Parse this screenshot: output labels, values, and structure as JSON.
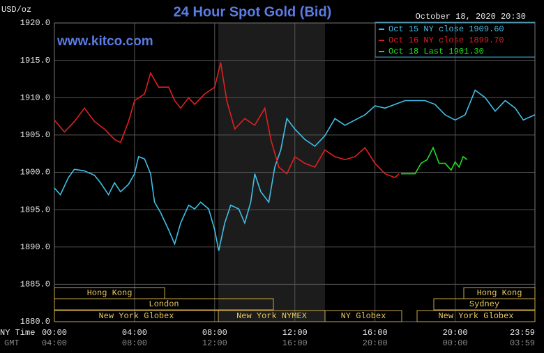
{
  "chart_data": {
    "type": "line",
    "title": "24 Hour Spot Gold (Bid)",
    "y_label": "USD/oz",
    "date_stamp": "October 18, 2020 20:30",
    "watermark": "www.kitco.com",
    "x_axis_label": "NY Time",
    "x2_axis_label": "GMT",
    "xlim": [
      0,
      23.983
    ],
    "xticks": [
      {
        "value": 0,
        "label": "00:00"
      },
      {
        "value": 4,
        "label": "04:00"
      },
      {
        "value": 8,
        "label": "08:00"
      },
      {
        "value": 12,
        "label": "12:00"
      },
      {
        "value": 16,
        "label": "16:00"
      },
      {
        "value": 20,
        "label": "20:00"
      },
      {
        "value": 23.983,
        "label": "23:59"
      }
    ],
    "x2ticks": [
      {
        "value": 0,
        "label": "04:00"
      },
      {
        "value": 4,
        "label": "08:00"
      },
      {
        "value": 8,
        "label": "12:00"
      },
      {
        "value": 12,
        "label": "16:00"
      },
      {
        "value": 16,
        "label": "20:00"
      },
      {
        "value": 20,
        "label": "00:00"
      },
      {
        "value": 23.983,
        "label": "03:59"
      }
    ],
    "ylim": [
      1880,
      1920
    ],
    "yticks": [
      {
        "value": 1880,
        "label": "1880.0"
      },
      {
        "value": 1885,
        "label": "1885.0"
      },
      {
        "value": 1890,
        "label": "1890.0"
      },
      {
        "value": 1895,
        "label": "1895.0"
      },
      {
        "value": 1900,
        "label": "1900.0"
      },
      {
        "value": 1905,
        "label": "1905.0"
      },
      {
        "value": 1910,
        "label": "1910.0"
      },
      {
        "value": 1915,
        "label": "1915.0"
      },
      {
        "value": 1920,
        "label": "1920.0"
      }
    ],
    "grid": true,
    "sessions": [
      "Hong Kong",
      "London",
      "New York Globex",
      "New York NYMEX",
      "NY Globex",
      "Hong Kong",
      "Sydney",
      "New York Globex"
    ],
    "series": [
      {
        "name": "Oct 15 NY close 1909.60",
        "color": "#40c0e8",
        "x": [
          0,
          0.3,
          0.7,
          1,
          1.5,
          2,
          2.3,
          2.7,
          3,
          3.3,
          3.7,
          4,
          4.2,
          4.5,
          4.8,
          5,
          5.3,
          5.7,
          6,
          6.3,
          6.7,
          7,
          7.3,
          7.7,
          8,
          8.2,
          8.5,
          8.8,
          9.2,
          9.5,
          9.8,
          10,
          10.3,
          10.7,
          11,
          11.3,
          11.6,
          12,
          12.5,
          13,
          13.5,
          14,
          14.5,
          15,
          15.5,
          16,
          16.5,
          17,
          17.5,
          18,
          18.5,
          19,
          19.5,
          20,
          20.5,
          21,
          21.5,
          22,
          22.5,
          23,
          23.4,
          23.98
        ],
        "values": [
          1897.9,
          1897.0,
          1899.3,
          1900.4,
          1900.2,
          1899.6,
          1898.6,
          1897.0,
          1898.6,
          1897.4,
          1898.4,
          1899.8,
          1902.1,
          1901.8,
          1899.8,
          1896.0,
          1894.6,
          1892.3,
          1890.4,
          1893.2,
          1895.6,
          1895.1,
          1896.0,
          1895.1,
          1892.3,
          1889.5,
          1893.2,
          1895.6,
          1895.1,
          1893.2,
          1896.0,
          1899.8,
          1897.4,
          1896.0,
          1900.7,
          1903.0,
          1907.2,
          1905.8,
          1904.4,
          1903.5,
          1904.9,
          1907.2,
          1906.3,
          1907.0,
          1907.7,
          1908.9,
          1908.6,
          1909.1,
          1909.6,
          1909.6,
          1909.6,
          1909.1,
          1907.7,
          1907.0,
          1907.7,
          1911.0,
          1910.0,
          1908.2,
          1909.6,
          1908.6,
          1907.0,
          1907.7
        ]
      },
      {
        "name": "Oct 16 NY close 1899.70",
        "color": "#e02020",
        "x": [
          0,
          0.5,
          1,
          1.5,
          2,
          2.5,
          3,
          3.3,
          3.7,
          4,
          4.5,
          4.8,
          5.2,
          5.7,
          6,
          6.3,
          6.7,
          7,
          7.5,
          8,
          8.3,
          8.6,
          9,
          9.5,
          10,
          10.5,
          10.8,
          11.2,
          11.6,
          12,
          12.5,
          13,
          13.5,
          14,
          14.5,
          15,
          15.5,
          16,
          16.5,
          17,
          17.2
        ],
        "values": [
          1907.0,
          1905.4,
          1906.8,
          1908.6,
          1906.8,
          1905.8,
          1904.4,
          1904.0,
          1906.8,
          1909.6,
          1910.5,
          1913.3,
          1911.4,
          1911.4,
          1909.6,
          1908.6,
          1910.0,
          1909.1,
          1910.5,
          1911.4,
          1914.7,
          1909.6,
          1905.8,
          1907.2,
          1906.3,
          1908.6,
          1904.4,
          1900.7,
          1899.8,
          1902.1,
          1901.2,
          1900.7,
          1903.0,
          1902.1,
          1901.7,
          1902.1,
          1903.3,
          1901.2,
          1899.8,
          1899.3,
          1899.8
        ]
      },
      {
        "name": "Oct 18 Last 1901.30",
        "color": "#20e020",
        "x": [
          17.3,
          18,
          18.3,
          18.6,
          18.9,
          19.2,
          19.5,
          19.8,
          20,
          20.2,
          20.4,
          20.6
        ],
        "values": [
          1899.8,
          1899.8,
          1901.2,
          1901.7,
          1903.3,
          1901.2,
          1901.2,
          1900.3,
          1901.4,
          1900.7,
          1902.1,
          1901.7
        ]
      }
    ]
  }
}
